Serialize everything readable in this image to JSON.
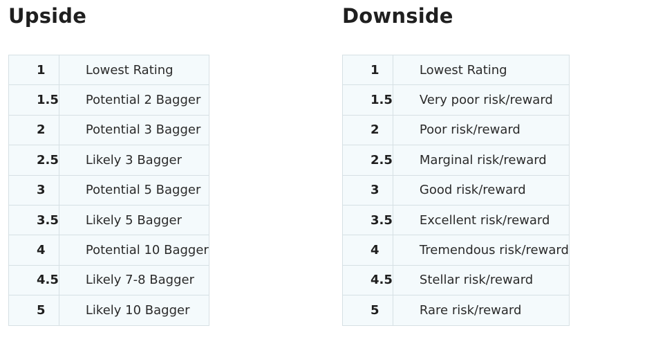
{
  "upside": {
    "title": "Upside",
    "rows": [
      {
        "score": "1",
        "label": "Lowest Rating"
      },
      {
        "score": "1.5",
        "label": "Potential 2 Bagger"
      },
      {
        "score": "2",
        "label": "Potential 3 Bagger"
      },
      {
        "score": "2.5",
        "label": "Likely 3 Bagger"
      },
      {
        "score": "3",
        "label": "Potential 5 Bagger"
      },
      {
        "score": "3.5",
        "label": "Likely 5 Bagger"
      },
      {
        "score": "4",
        "label": "Potential 10 Bagger"
      },
      {
        "score": "4.5",
        "label": "Likely 7-8 Bagger"
      },
      {
        "score": "5",
        "label": "Likely 10 Bagger"
      }
    ]
  },
  "downside": {
    "title": "Downside",
    "rows": [
      {
        "score": "1",
        "label": "Lowest Rating"
      },
      {
        "score": "1.5",
        "label": "Very poor risk/reward"
      },
      {
        "score": "2",
        "label": "Poor risk/reward"
      },
      {
        "score": "2.5",
        "label": "Marginal risk/reward"
      },
      {
        "score": "3",
        "label": "Good risk/reward"
      },
      {
        "score": "3.5",
        "label": "Excellent risk/reward"
      },
      {
        "score": "4",
        "label": "Tremendous risk/reward"
      },
      {
        "score": "4.5",
        "label": "Stellar risk/reward"
      },
      {
        "score": "5",
        "label": "Rare risk/reward"
      }
    ]
  },
  "colors": {
    "cell_background": "#f4fafc",
    "cell_border": "#d6e0e4",
    "text": "#222222"
  }
}
